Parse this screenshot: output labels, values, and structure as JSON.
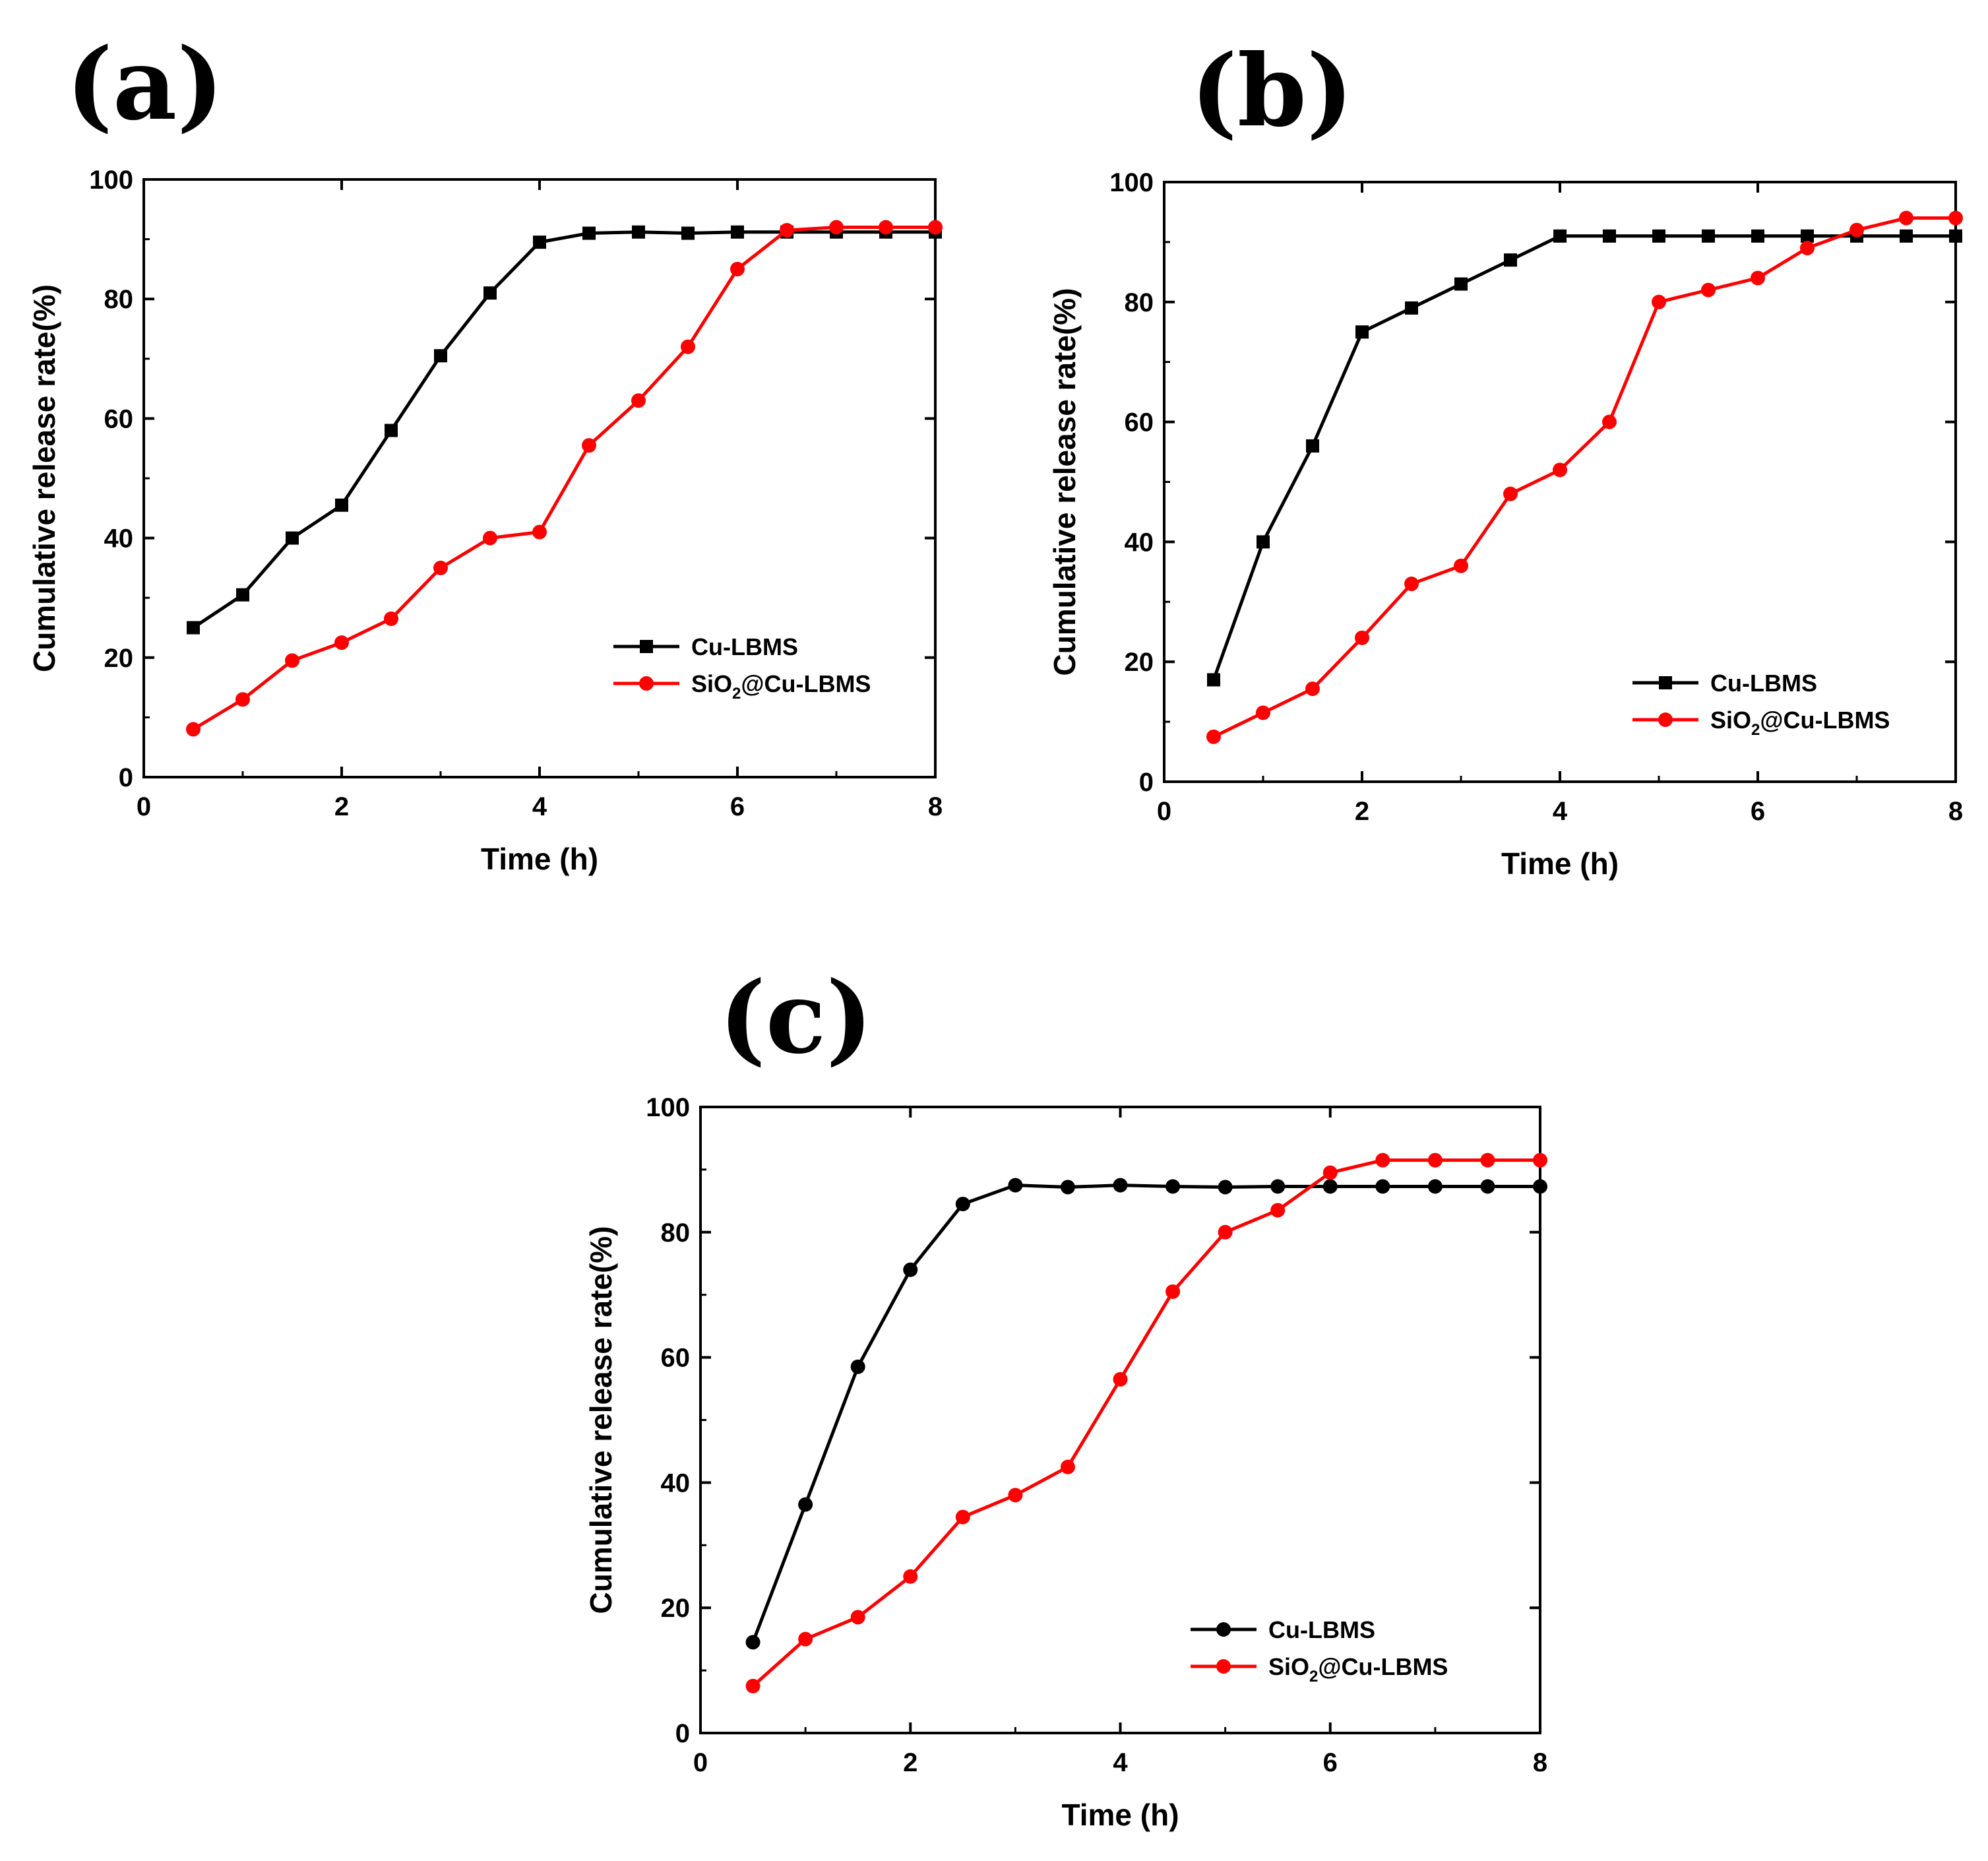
{
  "colors": {
    "series_1": "#000000",
    "series_2": "#ff0000",
    "axis": "#000000"
  },
  "panels": [
    {
      "label": "(a)",
      "legend_position": "bottom-right",
      "chart_data": {
        "type": "line",
        "title": "",
        "xlabel": "Time (h)",
        "ylabel": "Cumulative release rate(%)",
        "xlim": [
          0,
          8
        ],
        "ylim": [
          0,
          100
        ],
        "xticks": [
          "0",
          "2",
          "4",
          "6",
          "8"
        ],
        "yticks": [
          "0",
          "20",
          "40",
          "60",
          "80",
          "100"
        ],
        "x": [
          0.5,
          1,
          1.5,
          2,
          2.5,
          3,
          3.5,
          4,
          4.5,
          5,
          5.5,
          6,
          6.5,
          7,
          7.5,
          8
        ],
        "series": [
          {
            "name": "Cu-LBMS",
            "legend_main": "Cu-LBMS",
            "marker": "square",
            "values": [
              25,
              30.5,
              40,
              45.5,
              58,
              70.5,
              81,
              89.5,
              91,
              91.2,
              91,
              91.2,
              91.2,
              91.2,
              91.2,
              91.2
            ]
          },
          {
            "name": "SiO2@Cu-LBMS",
            "legend_main": "SiO",
            "legend_sub": "2",
            "legend_rest": "@Cu-LBMS",
            "marker": "circle",
            "values": [
              8,
              13,
              19.5,
              22.5,
              26.5,
              35,
              40,
              41,
              55.5,
              63,
              72,
              85,
              91.5,
              92,
              92,
              92
            ]
          }
        ]
      }
    },
    {
      "label": "(b)",
      "legend_position": "bottom-right",
      "chart_data": {
        "type": "line",
        "title": "",
        "xlabel": "Time (h)",
        "ylabel": "Cumulative release rate(%)",
        "xlim": [
          0,
          8
        ],
        "ylim": [
          0,
          100
        ],
        "xticks": [
          "0",
          "2",
          "4",
          "6",
          "8"
        ],
        "yticks": [
          "0",
          "20",
          "40",
          "60",
          "80",
          "100"
        ],
        "x": [
          0.5,
          1,
          1.5,
          2,
          2.5,
          3,
          3.5,
          4,
          4.5,
          5,
          5.5,
          6,
          6.5,
          7,
          7.5,
          8
        ],
        "series": [
          {
            "name": "Cu-LBMS",
            "legend_main": "Cu-LBMS",
            "marker": "square",
            "values": [
              17,
              40,
              56,
              75,
              79,
              83,
              87,
              91,
              91,
              91,
              91,
              91,
              91,
              91,
              91,
              91
            ]
          },
          {
            "name": "SiO2@Cu-LBMS",
            "legend_main": "SiO",
            "legend_sub": "2",
            "legend_rest": "@Cu-LBMS",
            "marker": "circle",
            "values": [
              7.5,
              11.5,
              15.5,
              24,
              33,
              36,
              48,
              52,
              60,
              80,
              82,
              84,
              89,
              92,
              94,
              94
            ]
          }
        ]
      }
    },
    {
      "label": "(c)",
      "legend_position": "bottom-right",
      "chart_data": {
        "type": "line",
        "title": "",
        "xlabel": "Time (h)",
        "ylabel": "Cumulative release rate(%)",
        "xlim": [
          0,
          8
        ],
        "ylim": [
          0,
          100
        ],
        "xticks": [
          "0",
          "2",
          "4",
          "6",
          "8"
        ],
        "yticks": [
          "0",
          "20",
          "40",
          "60",
          "80",
          "100"
        ],
        "x": [
          0.5,
          1,
          1.5,
          2,
          2.5,
          3,
          3.5,
          4,
          4.5,
          5,
          5.5,
          6,
          6.5,
          7,
          7.5,
          8
        ],
        "series": [
          {
            "name": "Cu-LBMS",
            "legend_main": "Cu-LBMS",
            "marker": "circle",
            "values": [
              14.5,
              36.5,
              58.5,
              74,
              84.5,
              87.5,
              87.2,
              87.5,
              87.3,
              87.2,
              87.3,
              87.3,
              87.3,
              87.3,
              87.3,
              87.3
            ]
          },
          {
            "name": "SiO2@Cu-LBMS",
            "legend_main": "SiO",
            "legend_sub": "2",
            "legend_rest": "@Cu-LBMS",
            "marker": "circle",
            "values": [
              7.5,
              15,
              18.5,
              25,
              34.5,
              38,
              42.5,
              56.5,
              70.5,
              80,
              83.5,
              89.5,
              91.5,
              91.5,
              91.5,
              91.5
            ]
          }
        ]
      }
    }
  ]
}
